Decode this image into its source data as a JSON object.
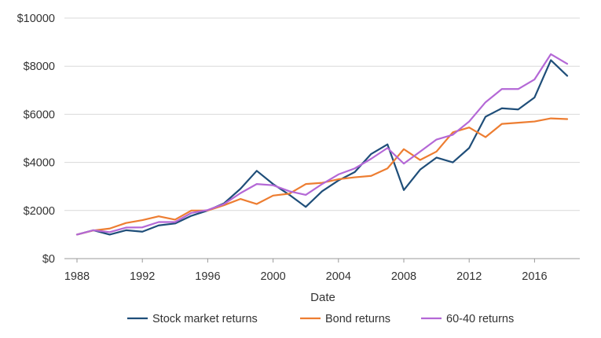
{
  "chart_data": {
    "type": "line",
    "title": "",
    "xlabel": "Date",
    "ylabel": "",
    "x": [
      1988,
      1989,
      1990,
      1991,
      1992,
      1993,
      1994,
      1995,
      1996,
      1997,
      1998,
      1999,
      2000,
      2001,
      2002,
      2003,
      2004,
      2005,
      2006,
      2007,
      2008,
      2009,
      2010,
      2011,
      2012,
      2013,
      2014,
      2015,
      2016,
      2017,
      2018
    ],
    "xlim": [
      1988,
      2018
    ],
    "ylim": [
      0,
      10000
    ],
    "x_ticks": [
      1988,
      1992,
      1996,
      2000,
      2004,
      2008,
      2012,
      2016
    ],
    "x_tick_labels": [
      "1988",
      "1992",
      "1996",
      "2000",
      "2004",
      "2008",
      "2012",
      "2016"
    ],
    "y_ticks": [
      0,
      2000,
      4000,
      6000,
      8000,
      10000
    ],
    "y_tick_labels": [
      "$0",
      "$2000",
      "$4000",
      "$6000",
      "$8000",
      "$10000"
    ],
    "grid": "horizontal",
    "legend_position": "bottom",
    "series": [
      {
        "name": "Stock market returns",
        "color": "#1f4e79",
        "values": [
          1000,
          1180,
          1000,
          1180,
          1120,
          1380,
          1460,
          1780,
          2000,
          2300,
          2900,
          3650,
          3100,
          2650,
          2150,
          2800,
          3250,
          3600,
          4350,
          4750,
          2850,
          3700,
          4200,
          4000,
          4600,
          5900,
          6250,
          6200,
          6700,
          8250,
          7600
        ]
      },
      {
        "name": "Bond returns",
        "color": "#ed7d31",
        "values": [
          1000,
          1170,
          1250,
          1480,
          1600,
          1760,
          1620,
          2000,
          2000,
          2220,
          2480,
          2270,
          2620,
          2700,
          3100,
          3150,
          3300,
          3380,
          3440,
          3750,
          4550,
          4100,
          4450,
          5250,
          5450,
          5050,
          5600,
          5650,
          5700,
          5830,
          5800
        ]
      },
      {
        "name": "60-40 returns",
        "color": "#b468d6",
        "values": [
          1000,
          1180,
          1100,
          1290,
          1300,
          1520,
          1520,
          1900,
          2020,
          2270,
          2720,
          3100,
          3050,
          2800,
          2650,
          3100,
          3500,
          3750,
          4150,
          4600,
          3950,
          4450,
          4950,
          5150,
          5700,
          6500,
          7050,
          7050,
          7450,
          8500,
          8100
        ]
      }
    ]
  }
}
